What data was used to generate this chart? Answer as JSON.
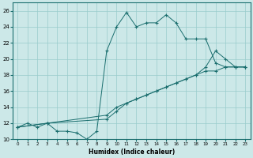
{
  "xlabel": "Humidex (Indice chaleur)",
  "ylabel": "",
  "bg_color": "#cce8e8",
  "grid_color": "#99cccc",
  "line_color": "#1a6e6e",
  "xlim": [
    -0.5,
    23.5
  ],
  "ylim": [
    10,
    27
  ],
  "xticks": [
    0,
    1,
    2,
    3,
    4,
    5,
    6,
    7,
    8,
    9,
    10,
    11,
    12,
    13,
    14,
    15,
    16,
    17,
    18,
    19,
    20,
    21,
    22,
    23
  ],
  "yticks": [
    10,
    12,
    14,
    16,
    18,
    20,
    22,
    24,
    26
  ],
  "line1_x": [
    0,
    1,
    2,
    3,
    4,
    5,
    6,
    7,
    8,
    9,
    10,
    11,
    12,
    13,
    14,
    15,
    16,
    17,
    18,
    19,
    20,
    21,
    22,
    23
  ],
  "line1_y": [
    11.5,
    12,
    11.5,
    12,
    11,
    11,
    10.8,
    10,
    11,
    21,
    24,
    25.8,
    24,
    24.5,
    24.5,
    25.5,
    24.5,
    22.5,
    22.5,
    22.5,
    19.5,
    19,
    19,
    19
  ],
  "line2_x": [
    0,
    3,
    9,
    10,
    11,
    12,
    13,
    14,
    15,
    16,
    17,
    18,
    19,
    20,
    21,
    22,
    23
  ],
  "line2_y": [
    11.5,
    12,
    13.0,
    14.0,
    14.5,
    15.0,
    15.5,
    16.0,
    16.5,
    17.0,
    17.5,
    18.0,
    19.0,
    21.0,
    20.0,
    19.0,
    19.0
  ],
  "line3_x": [
    0,
    3,
    9,
    10,
    11,
    12,
    13,
    14,
    15,
    16,
    17,
    18,
    19,
    20,
    21,
    22,
    23
  ],
  "line3_y": [
    11.5,
    12,
    12.5,
    13.5,
    14.5,
    15.0,
    15.5,
    16.0,
    16.5,
    17.0,
    17.5,
    18.0,
    18.5,
    18.5,
    19.0,
    19.0,
    19.0
  ]
}
